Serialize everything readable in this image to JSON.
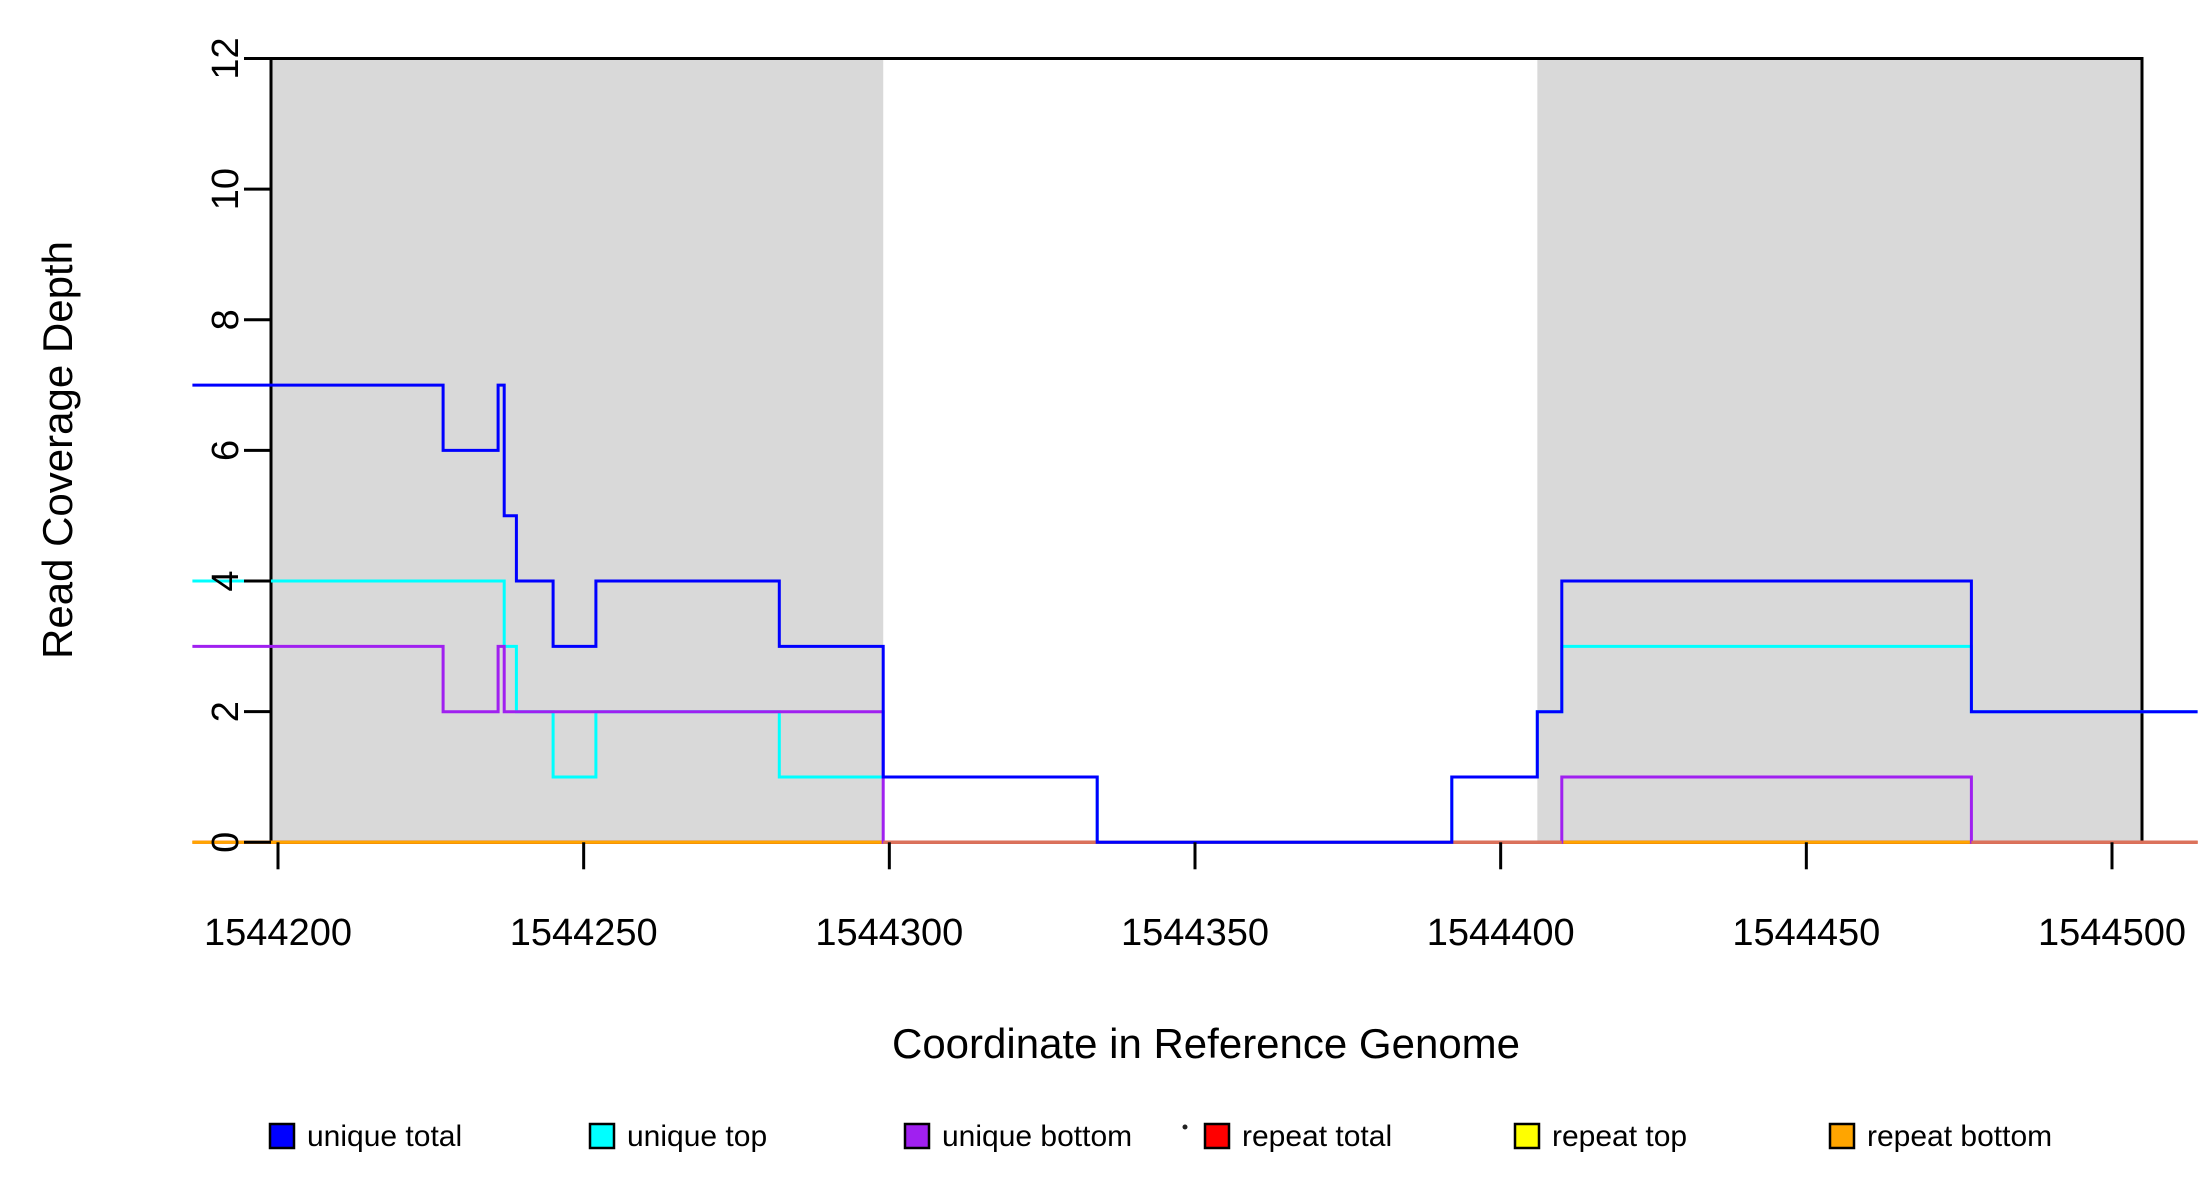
{
  "chart_data": {
    "type": "line",
    "subtype": "step",
    "title": "",
    "xlabel": "Coordinate in Reference Genome",
    "ylabel": "Read Coverage Depth",
    "x_ticks": [
      1544200,
      1544250,
      1544300,
      1544350,
      1544400,
      1544450,
      1544500
    ],
    "y_ticks": [
      0,
      2,
      4,
      6,
      8,
      10,
      12
    ],
    "xlim": [
      1544199,
      1544505
    ],
    "ylim": [
      0,
      12
    ],
    "grid": false,
    "legend_position": "bottom-horizontal",
    "shade_color": "#d9d9d9",
    "shaded_regions": [
      {
        "x1": 1544199,
        "x2": 1544299
      },
      {
        "x1": 1544406,
        "x2": 1544505
      }
    ],
    "series": [
      {
        "name": "unique total",
        "color": "#0000ff",
        "steps": [
          [
            1544186,
            7
          ],
          [
            1544227,
            6
          ],
          [
            1544236,
            7
          ],
          [
            1544237,
            5
          ],
          [
            1544239,
            4
          ],
          [
            1544245,
            3
          ],
          [
            1544252,
            4
          ],
          [
            1544282,
            3
          ],
          [
            1544299,
            1
          ],
          [
            1544334,
            0
          ],
          [
            1544392,
            1
          ],
          [
            1544406,
            2
          ],
          [
            1544410,
            4
          ],
          [
            1544477,
            2
          ],
          [
            1544514,
            2
          ]
        ]
      },
      {
        "name": "unique top",
        "color": "#00ffff",
        "steps": [
          [
            1544186,
            4
          ],
          [
            1544237,
            3
          ],
          [
            1544239,
            2
          ],
          [
            1544245,
            1
          ],
          [
            1544252,
            2
          ],
          [
            1544282,
            1
          ],
          [
            1544334,
            0
          ],
          [
            1544392,
            1
          ],
          [
            1544406,
            2
          ],
          [
            1544410,
            3
          ],
          [
            1544477,
            2
          ],
          [
            1544514,
            2
          ]
        ]
      },
      {
        "name": "unique bottom",
        "color": "#a020f0",
        "steps": [
          [
            1544186,
            3
          ],
          [
            1544227,
            2
          ],
          [
            1544236,
            3
          ],
          [
            1544237,
            2
          ],
          [
            1544299,
            0
          ],
          [
            1544410,
            1
          ],
          [
            1544477,
            0
          ],
          [
            1544514,
            0
          ]
        ]
      },
      {
        "name": "repeat total",
        "color": "#ff0000",
        "steps": [
          [
            1544186,
            0
          ],
          [
            1544514,
            0
          ]
        ]
      },
      {
        "name": "repeat top",
        "color": "#ffff00",
        "steps": [
          [
            1544186,
            0
          ],
          [
            1544514,
            0
          ]
        ]
      },
      {
        "name": "repeat bottom",
        "color": "#ffa500",
        "steps": [
          [
            1544186,
            0
          ],
          [
            1544514,
            0
          ]
        ]
      }
    ],
    "legend_stray_dot": "·"
  }
}
